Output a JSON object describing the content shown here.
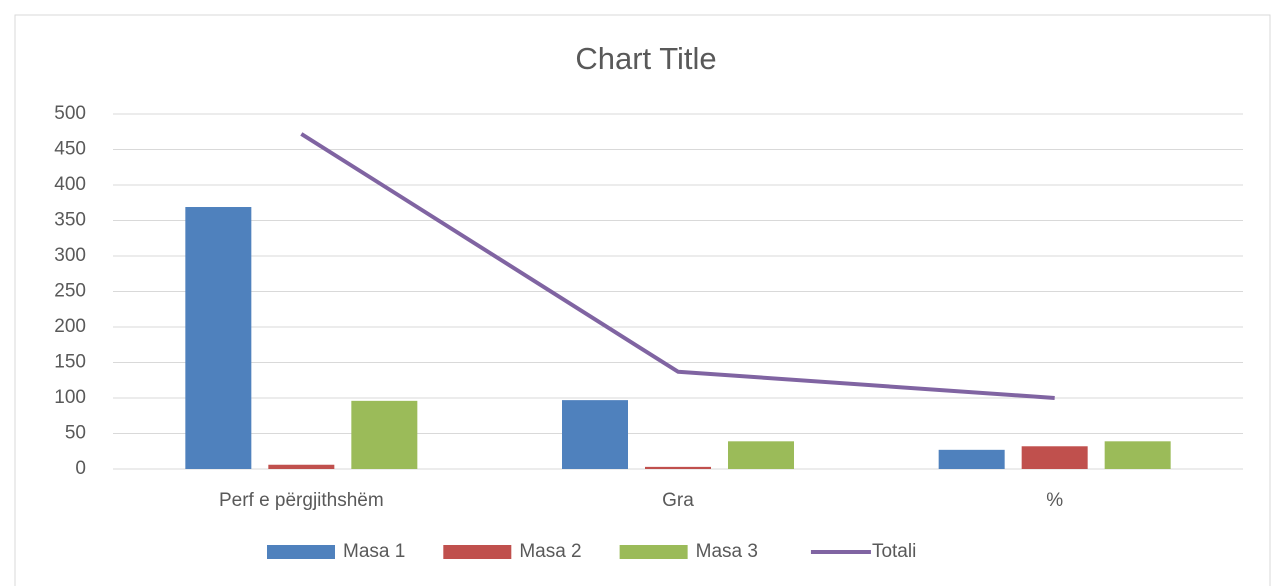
{
  "chart_data": {
    "type": "bar+line",
    "title": "Chart Title",
    "categories": [
      "Perf e përgjithshëm",
      "Gra",
      "%"
    ],
    "series": [
      {
        "name": "Masa 1",
        "type": "bar",
        "color": "#4f81bd",
        "values": [
          369,
          97,
          27
        ]
      },
      {
        "name": "Masa 2",
        "type": "bar",
        "color": "#c0504d",
        "values": [
          6,
          3,
          32
        ]
      },
      {
        "name": "Masa 3",
        "type": "bar",
        "color": "#9bbb59",
        "values": [
          96,
          39,
          39
        ]
      },
      {
        "name": "Totali",
        "type": "line",
        "color": "#8064a2",
        "values": [
          472,
          137,
          100
        ]
      }
    ],
    "ylim": [
      0,
      500
    ],
    "yticks": [
      0,
      50,
      100,
      150,
      200,
      250,
      300,
      350,
      400,
      450,
      500
    ],
    "grid": true,
    "legend": "bottom"
  }
}
